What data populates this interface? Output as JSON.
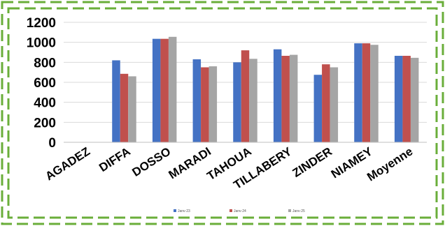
{
  "chart_data": {
    "type": "bar",
    "categories": [
      "AGADEZ",
      "DIFFA",
      "DOSSO",
      "MARADI",
      "TAHOUA",
      "TILLABERY",
      "ZINDER",
      "NIAMEY",
      "Moyenne"
    ],
    "series": [
      {
        "name": "Janv-23",
        "color": "#4472C4",
        "values": [
          0,
          820,
          1035,
          830,
          800,
          930,
          675,
          990,
          865
        ]
      },
      {
        "name": "Janv-24",
        "color": "#C0504D",
        "values": [
          0,
          685,
          1035,
          750,
          920,
          865,
          780,
          990,
          865
        ]
      },
      {
        "name": "Janv-25",
        "color": "#A5A5A5",
        "values": [
          0,
          660,
          1055,
          760,
          835,
          875,
          750,
          975,
          845
        ]
      }
    ],
    "yticks": [
      "0",
      "200",
      "400",
      "600",
      "800",
      "1000",
      "1200"
    ],
    "ylim": [
      0,
      1200
    ],
    "grid": true,
    "legend_position": "bottom",
    "border_color": "#6AAE3A"
  }
}
